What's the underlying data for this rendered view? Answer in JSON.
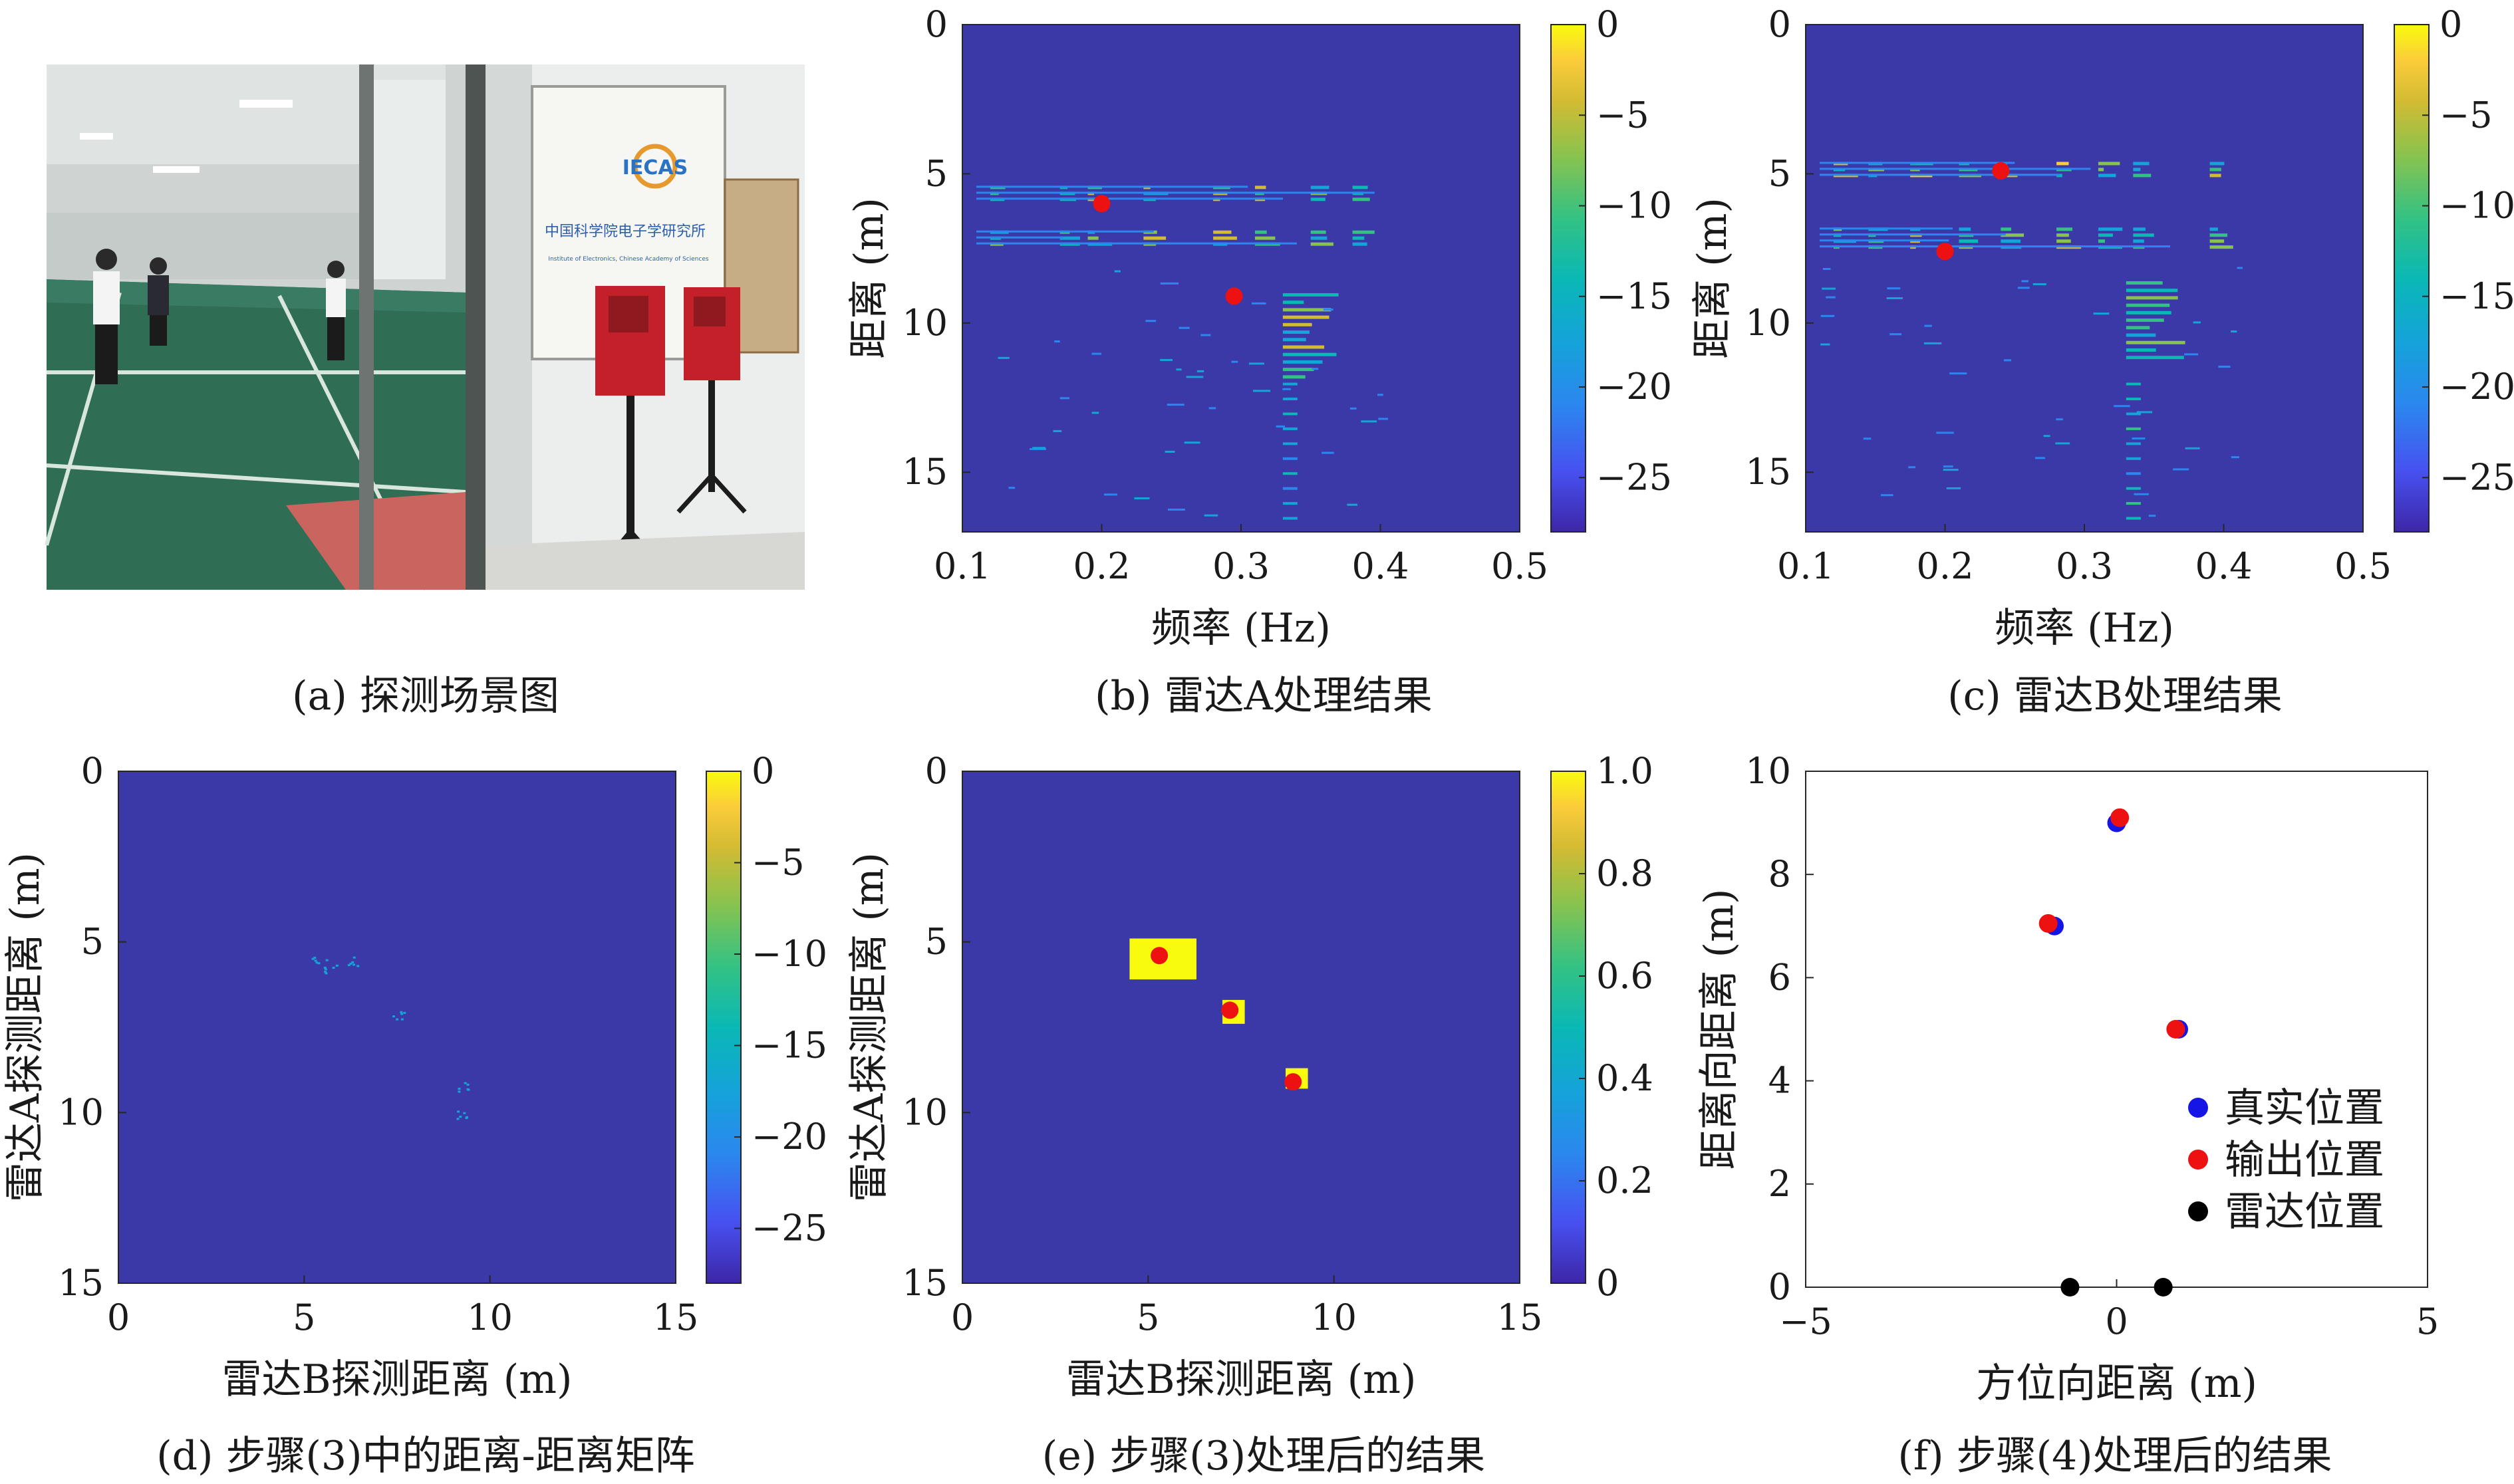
{
  "colors": {
    "heat_bg": "#3b39a8",
    "colormap": [
      "#3d26a8",
      "#4751f0",
      "#2b87ef",
      "#14a4d8",
      "#0ab8b5",
      "#34c283",
      "#88c34f",
      "#d3bb32",
      "#fbcc3a",
      "#f9fb0e"
    ],
    "marker_red": "#ee1111",
    "marker_blue": "#1515e6",
    "marker_black": "#000000"
  },
  "panel_a": {
    "caption": "(a) 探测场景图",
    "photo_text": "IECAS",
    "photo_sign": "中国科学院电子学研究所",
    "photo_sign_en": "Institute of Electronics, Chinese Academy of Sciences"
  },
  "chart_data": [
    {
      "id": "b",
      "type": "heatmap",
      "caption": "(b) 雷达A处理结果",
      "xlabel": "频率 (Hz)",
      "ylabel": "距离 (m)",
      "xlim": [
        0.1,
        0.5
      ],
      "ylim": [
        0,
        17
      ],
      "y_reversed": true,
      "xticks": [
        "0.1",
        "0.2",
        "0.3",
        "0.4",
        "0.5"
      ],
      "yticks": [
        "0",
        "5",
        "10",
        "15"
      ],
      "colorbar": {
        "range": [
          -28,
          0
        ],
        "ticks": [
          "0",
          "−5",
          "−10",
          "−15",
          "−20",
          "−25"
        ]
      },
      "markers": [
        {
          "x": 0.2,
          "y": 6.0
        },
        {
          "x": 0.295,
          "y": 9.1
        }
      ]
    },
    {
      "id": "c",
      "type": "heatmap",
      "caption": "(c) 雷达B处理结果",
      "xlabel": "频率 (Hz)",
      "ylabel": "距离 (m)",
      "xlim": [
        0.1,
        0.5
      ],
      "ylim": [
        0,
        17
      ],
      "y_reversed": true,
      "xticks": [
        "0.1",
        "0.2",
        "0.3",
        "0.4",
        "0.5"
      ],
      "yticks": [
        "0",
        "5",
        "10",
        "15"
      ],
      "colorbar": {
        "range": [
          -28,
          0
        ],
        "ticks": [
          "0",
          "−5",
          "−10",
          "−15",
          "−20",
          "−25"
        ]
      },
      "markers": [
        {
          "x": 0.24,
          "y": 4.9
        },
        {
          "x": 0.2,
          "y": 7.6
        }
      ]
    },
    {
      "id": "d",
      "type": "heatmap",
      "caption": "(d) 步骤(3)中的距离-距离矩阵",
      "xlabel": "雷达B探测距离 (m)",
      "ylabel": "雷达A探测距离 (m)",
      "xlim": [
        0,
        15
      ],
      "ylim": [
        0,
        15
      ],
      "y_reversed": true,
      "xticks": [
        "0",
        "5",
        "10",
        "15"
      ],
      "yticks": [
        "0",
        "5",
        "10",
        "15"
      ],
      "colorbar": {
        "range": [
          -28,
          0
        ],
        "ticks": [
          "0",
          "−5",
          "−10",
          "−15",
          "−20",
          "−25"
        ]
      },
      "markers": []
    },
    {
      "id": "e",
      "type": "heatmap",
      "caption": "(e) 步骤(3)处理后的结果",
      "xlabel": "雷达B探测距离 (m)",
      "ylabel": "雷达A探测距离 (m)",
      "xlim": [
        0,
        15
      ],
      "ylim": [
        0,
        15
      ],
      "y_reversed": true,
      "xticks": [
        "0",
        "5",
        "10",
        "15"
      ],
      "yticks": [
        "0",
        "5",
        "10",
        "15"
      ],
      "colorbar": {
        "range": [
          0,
          1
        ],
        "ticks": [
          "1.0",
          "0.8",
          "0.6",
          "0.4",
          "0.2",
          "0"
        ]
      },
      "markers": [
        {
          "x": 5.3,
          "y": 5.4
        },
        {
          "x": 7.2,
          "y": 7.0
        },
        {
          "x": 8.9,
          "y": 9.1
        }
      ]
    },
    {
      "id": "f",
      "type": "scatter",
      "caption": "(f) 步骤(4)处理后的结果",
      "xlabel": "方位向距离 (m)",
      "ylabel": "距离向距离 (m)",
      "xlim": [
        -5,
        5
      ],
      "ylim": [
        0,
        10
      ],
      "xticks": [
        "−5",
        "0",
        "5"
      ],
      "yticks": [
        "0",
        "2",
        "4",
        "6",
        "8",
        "10"
      ],
      "legend_position": "bottom-right",
      "series": [
        {
          "name": "真实位置",
          "color": "#1515e6",
          "points": [
            [
              0.0,
              9.0
            ],
            [
              -1.0,
              7.0
            ],
            [
              1.0,
              5.0
            ]
          ]
        },
        {
          "name": "输出位置",
          "color": "#ee1111",
          "points": [
            [
              0.05,
              9.1
            ],
            [
              -1.1,
              7.05
            ],
            [
              0.95,
              5.0
            ]
          ]
        },
        {
          "name": "雷达位置",
          "color": "#000000",
          "points": [
            [
              -0.75,
              0.0
            ],
            [
              0.75,
              0.0
            ]
          ]
        }
      ]
    }
  ]
}
